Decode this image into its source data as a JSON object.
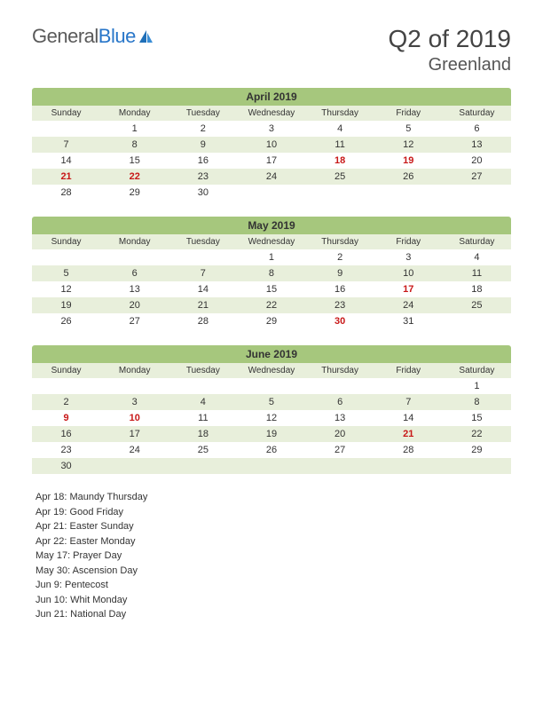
{
  "brand": {
    "part1": "General",
    "part2": "Blue"
  },
  "title": "Q2 of 2019",
  "subtitle": "Greenland",
  "colors": {
    "month_header_bg": "#a6c77d",
    "row_alt_bg": "#e8efdb",
    "holiday_text": "#c81818",
    "page_bg": "#ffffff"
  },
  "weekday_labels": [
    "Sunday",
    "Monday",
    "Tuesday",
    "Wednesday",
    "Thursday",
    "Friday",
    "Saturday"
  ],
  "months": [
    {
      "title": "April 2019",
      "weeks": [
        {
          "alt": false,
          "days": [
            "",
            "1",
            "2",
            "3",
            "4",
            "5",
            "6"
          ],
          "holidays": []
        },
        {
          "alt": true,
          "days": [
            "7",
            "8",
            "9",
            "10",
            "11",
            "12",
            "13"
          ],
          "holidays": []
        },
        {
          "alt": false,
          "days": [
            "14",
            "15",
            "16",
            "17",
            "18",
            "19",
            "20"
          ],
          "holidays": [
            4,
            5
          ]
        },
        {
          "alt": true,
          "days": [
            "21",
            "22",
            "23",
            "24",
            "25",
            "26",
            "27"
          ],
          "holidays": [
            0,
            1
          ]
        },
        {
          "alt": false,
          "days": [
            "28",
            "29",
            "30",
            "",
            "",
            "",
            ""
          ],
          "holidays": []
        }
      ]
    },
    {
      "title": "May 2019",
      "weeks": [
        {
          "alt": false,
          "days": [
            "",
            "",
            "",
            "1",
            "2",
            "3",
            "4"
          ],
          "holidays": []
        },
        {
          "alt": true,
          "days": [
            "5",
            "6",
            "7",
            "8",
            "9",
            "10",
            "11"
          ],
          "holidays": []
        },
        {
          "alt": false,
          "days": [
            "12",
            "13",
            "14",
            "15",
            "16",
            "17",
            "18"
          ],
          "holidays": [
            5
          ]
        },
        {
          "alt": true,
          "days": [
            "19",
            "20",
            "21",
            "22",
            "23",
            "24",
            "25"
          ],
          "holidays": []
        },
        {
          "alt": false,
          "days": [
            "26",
            "27",
            "28",
            "29",
            "30",
            "31",
            ""
          ],
          "holidays": [
            4
          ]
        }
      ]
    },
    {
      "title": "June 2019",
      "weeks": [
        {
          "alt": false,
          "days": [
            "",
            "",
            "",
            "",
            "",
            "",
            "1"
          ],
          "holidays": []
        },
        {
          "alt": true,
          "days": [
            "2",
            "3",
            "4",
            "5",
            "6",
            "7",
            "8"
          ],
          "holidays": []
        },
        {
          "alt": false,
          "days": [
            "9",
            "10",
            "11",
            "12",
            "13",
            "14",
            "15"
          ],
          "holidays": [
            0,
            1
          ]
        },
        {
          "alt": true,
          "days": [
            "16",
            "17",
            "18",
            "19",
            "20",
            "21",
            "22"
          ],
          "holidays": [
            5
          ]
        },
        {
          "alt": false,
          "days": [
            "23",
            "24",
            "25",
            "26",
            "27",
            "28",
            "29"
          ],
          "holidays": []
        },
        {
          "alt": true,
          "days": [
            "30",
            "",
            "",
            "",
            "",
            "",
            ""
          ],
          "holidays": []
        }
      ]
    }
  ],
  "holidays_list": [
    "Apr 18: Maundy Thursday",
    "Apr 19: Good Friday",
    "Apr 21: Easter Sunday",
    "Apr 22: Easter Monday",
    "May 17: Prayer Day",
    "May 30: Ascension Day",
    "Jun 9: Pentecost",
    "Jun 10: Whit Monday",
    "Jun 21: National Day"
  ]
}
